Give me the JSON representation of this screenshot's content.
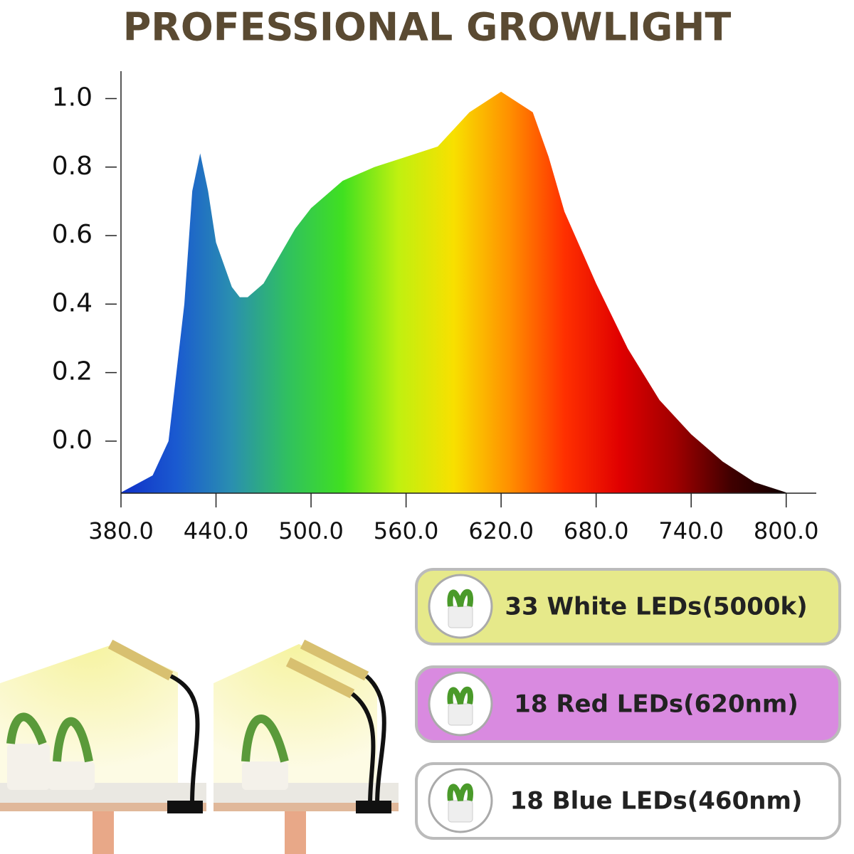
{
  "title": "PROFESSIONAL GROWLIGHT",
  "chart_data": {
    "type": "area",
    "x": [
      380,
      400,
      410,
      420,
      425,
      430,
      435,
      440,
      450,
      455,
      460,
      470,
      480,
      490,
      500,
      520,
      540,
      560,
      580,
      600,
      620,
      640,
      650,
      660,
      680,
      700,
      720,
      740,
      760,
      780,
      800
    ],
    "values": [
      -0.15,
      -0.1,
      0.0,
      0.4,
      0.73,
      0.84,
      0.73,
      0.58,
      0.45,
      0.42,
      0.42,
      0.46,
      0.54,
      0.62,
      0.68,
      0.76,
      0.8,
      0.83,
      0.86,
      0.96,
      1.02,
      0.96,
      0.83,
      0.67,
      0.46,
      0.27,
      0.12,
      0.02,
      -0.06,
      -0.12,
      -0.15
    ],
    "colors": [
      "#1030c8",
      "#1a5ad0",
      "#2a8fb0",
      "#30c060",
      "#40e020",
      "#c0f010",
      "#f8e000",
      "#ff9000",
      "#ff3000",
      "#e00000",
      "#a00000",
      "#400000",
      "#100000"
    ],
    "xlim": [
      380,
      819
    ],
    "ylim": [
      -0.152,
      1.08
    ],
    "xticks": [
      {
        "value": 380,
        "label": "380.0"
      },
      {
        "value": 440,
        "label": "440.0"
      },
      {
        "value": 500,
        "label": "500.0"
      },
      {
        "value": 560,
        "label": "560.0"
      },
      {
        "value": 620,
        "label": "620.0"
      },
      {
        "value": 680,
        "label": "680.0"
      },
      {
        "value": 740,
        "label": "740.0"
      },
      {
        "value": 800,
        "label": "800.0"
      }
    ],
    "yticks": [
      {
        "value": 0,
        "label": "0.0"
      },
      {
        "value": 0.2,
        "label": "0.2"
      },
      {
        "value": 0.4,
        "label": "0.4"
      },
      {
        "value": 0.6,
        "label": "0.6"
      },
      {
        "value": 0.8,
        "label": "0.8"
      },
      {
        "value": 1.0,
        "label": "1.0"
      }
    ]
  },
  "led_panels": [
    {
      "label": "33 White LEDs(5000k)",
      "color": "#e6e98a"
    },
    {
      "label": "18 Red LEDs(620nm)",
      "color": "#d98ae0"
    },
    {
      "label": "18 Blue LEDs(460nm)",
      "color": "#ffffff"
    }
  ]
}
